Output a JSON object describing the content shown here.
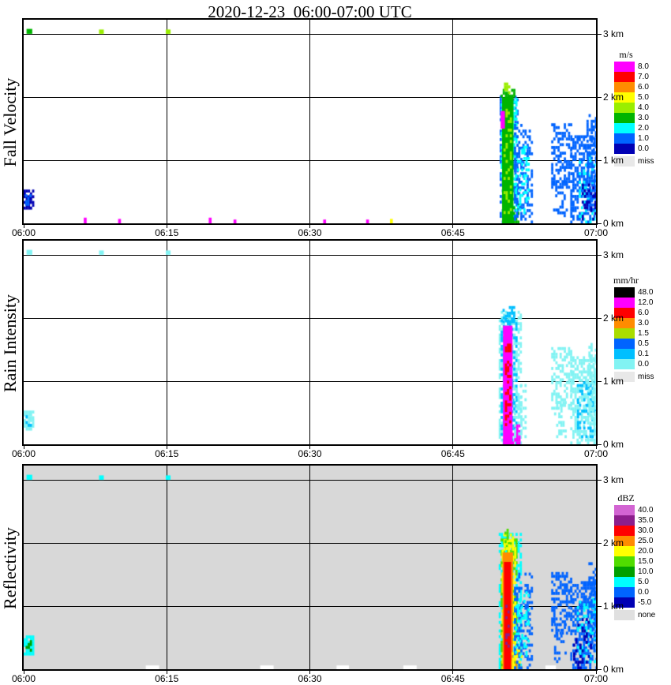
{
  "title": "2020-12-23  06:00-07:00 UTC",
  "chart_data": [
    {
      "type": "heatmap",
      "ylabel": "Fall Velocity",
      "x_tick_labels": [
        "06:00",
        "06:15",
        "06:30",
        "06:45",
        "07:00"
      ],
      "y_tick_labels": [
        "0 km",
        "1 km",
        "2 km",
        "3 km"
      ],
      "x_range_minutes": [
        0,
        60
      ],
      "y_range_km": [
        0,
        3.225
      ],
      "background": "#ffffff",
      "legend": {
        "title": "m/s",
        "entries": [
          {
            "label": "8.0",
            "color": "#ff00ff"
          },
          {
            "label": "7.0",
            "color": "#ff0000"
          },
          {
            "label": "6.0",
            "color": "#ff8c00"
          },
          {
            "label": "5.0",
            "color": "#ffff00"
          },
          {
            "label": "4.0",
            "color": "#9aee00"
          },
          {
            "label": "3.0",
            "color": "#00b400"
          },
          {
            "label": "2.0",
            "color": "#00ffff"
          },
          {
            "label": "1.0",
            "color": "#0064ff"
          },
          {
            "label": "0.0",
            "color": "#0000b4"
          },
          {
            "label": "miss",
            "color": "#e8e8e8",
            "separated": true
          }
        ]
      },
      "cells": [
        [
          0.0,
          0.9,
          0.22,
          0.5,
          "0.0",
          "speckle",
          0.8
        ],
        [
          0.15,
          0.7,
          0.28,
          0.45,
          "1.0",
          "speckle",
          0.5
        ],
        [
          0.3,
          0.9,
          3.0,
          3.08,
          "3.0",
          "fill",
          1
        ],
        [
          7.9,
          8.4,
          3.0,
          3.07,
          "4.0",
          "fill",
          1
        ],
        [
          14.9,
          15.4,
          3.0,
          3.07,
          "4.0",
          "fill",
          1
        ],
        [
          6.3,
          6.6,
          0.0,
          0.09,
          "8.0",
          "fill",
          1
        ],
        [
          9.9,
          10.2,
          0.0,
          0.07,
          "8.0",
          "fill",
          1
        ],
        [
          19.4,
          19.7,
          0.0,
          0.09,
          "8.0",
          "fill",
          1
        ],
        [
          22.0,
          22.3,
          0.0,
          0.06,
          "8.0",
          "fill",
          1
        ],
        [
          31.4,
          31.7,
          0.0,
          0.06,
          "8.0",
          "fill",
          1
        ],
        [
          35.9,
          36.2,
          0.0,
          0.06,
          "8.0",
          "fill",
          1
        ],
        [
          38.4,
          38.7,
          0.0,
          0.07,
          "5.0",
          "fill",
          1
        ],
        [
          49.9,
          51.7,
          0.0,
          2.0,
          "1.0",
          "speckle",
          0.5
        ],
        [
          50.0,
          51.6,
          0.1,
          1.95,
          "2.0",
          "speckle",
          0.35
        ],
        [
          50.15,
          51.35,
          0.0,
          2.0,
          "3.0",
          "fill",
          1
        ],
        [
          50.3,
          51.1,
          0.15,
          1.8,
          "4.0",
          "speckle",
          0.3
        ],
        [
          51.3,
          52.0,
          0.0,
          0.3,
          "3.0",
          "speckle",
          0.5
        ],
        [
          50.0,
          50.45,
          1.5,
          1.78,
          "8.0",
          "fill",
          1
        ],
        [
          50.0,
          51.5,
          1.95,
          2.12,
          "3.0",
          "speckle",
          0.7
        ],
        [
          50.35,
          50.95,
          2.05,
          2.2,
          "4.0",
          "speckle",
          0.5
        ],
        [
          51.4,
          53.3,
          0.0,
          1.55,
          "1.0",
          "speckle",
          0.4
        ],
        [
          51.5,
          52.9,
          0.15,
          1.2,
          "2.0",
          "speckle",
          0.22
        ],
        [
          55.3,
          57.4,
          0.55,
          1.55,
          "1.0",
          "speckle",
          0.45
        ],
        [
          55.5,
          56.9,
          0.1,
          0.7,
          "1.0",
          "speckle",
          0.28
        ],
        [
          57.3,
          60.0,
          0.0,
          1.35,
          "1.0",
          "speckle",
          0.55
        ],
        [
          58.2,
          60.0,
          0.0,
          1.05,
          "2.0",
          "speckle",
          0.25
        ],
        [
          59.0,
          60.0,
          0.2,
          1.72,
          "1.0",
          "speckle",
          0.5
        ],
        [
          58.5,
          60.0,
          0.0,
          0.6,
          "0.0",
          "speckle",
          0.3
        ]
      ]
    },
    {
      "type": "heatmap",
      "ylabel": "Rain Intensity",
      "x_tick_labels": [
        "06:00",
        "06:15",
        "06:30",
        "06:45",
        "07:00"
      ],
      "y_tick_labels": [
        "0 km",
        "1 km",
        "2 km",
        "3 km"
      ],
      "x_range_minutes": [
        0,
        60
      ],
      "y_range_km": [
        0,
        3.225
      ],
      "background": "#ffffff",
      "legend": {
        "title": "mm/hr",
        "entries": [
          {
            "label": "48.0",
            "color": "#000000"
          },
          {
            "label": "12.0",
            "color": "#ff00ff"
          },
          {
            "label": "6.0",
            "color": "#ff0000"
          },
          {
            "label": "3.0",
            "color": "#ff8c00"
          },
          {
            "label": "1.5",
            "color": "#aadd00"
          },
          {
            "label": "0.5",
            "color": "#0064ff"
          },
          {
            "label": "0.1",
            "color": "#00bfff"
          },
          {
            "label": "0.0",
            "color": "#82f3f3"
          },
          {
            "label": "miss",
            "color": "#e8e8e8",
            "separated": true
          }
        ]
      },
      "cells": [
        [
          0.0,
          0.9,
          0.22,
          0.5,
          "0.0",
          "speckle",
          0.85
        ],
        [
          0.2,
          0.7,
          0.28,
          0.45,
          "0.1",
          "speckle",
          0.5
        ],
        [
          0.3,
          0.9,
          3.0,
          3.08,
          "0.0",
          "fill",
          1
        ],
        [
          7.9,
          8.4,
          3.0,
          3.07,
          "0.0",
          "fill",
          1
        ],
        [
          14.9,
          15.4,
          3.0,
          3.07,
          "0.0",
          "fill",
          1
        ],
        [
          49.8,
          52.0,
          0.0,
          2.1,
          "0.0",
          "speckle",
          0.5
        ],
        [
          50.0,
          51.6,
          0.0,
          2.0,
          "0.1",
          "speckle",
          0.4
        ],
        [
          50.25,
          51.25,
          0.0,
          1.88,
          "12.0",
          "fill",
          1
        ],
        [
          50.45,
          51.05,
          0.2,
          1.6,
          "6.0",
          "speckle",
          0.4
        ],
        [
          51.2,
          51.9,
          0.0,
          0.3,
          "12.0",
          "speckle",
          0.45
        ],
        [
          50.2,
          51.4,
          1.92,
          2.15,
          "0.1",
          "speckle",
          0.6
        ],
        [
          51.4,
          52.6,
          0.1,
          1.0,
          "0.0",
          "speckle",
          0.3
        ],
        [
          55.3,
          57.4,
          0.55,
          1.5,
          "0.0",
          "speckle",
          0.45
        ],
        [
          55.6,
          56.9,
          0.1,
          0.7,
          "0.0",
          "speckle",
          0.25
        ],
        [
          57.3,
          60.0,
          0.0,
          1.35,
          "0.0",
          "speckle",
          0.55
        ],
        [
          58.0,
          60.0,
          0.1,
          1.0,
          "0.1",
          "speckle",
          0.3
        ],
        [
          59.2,
          60.0,
          0.3,
          1.6,
          "0.0",
          "speckle",
          0.5
        ]
      ]
    },
    {
      "type": "heatmap",
      "ylabel": "Reflectivity",
      "x_tick_labels": [
        "06:00",
        "06:15",
        "06:30",
        "06:45",
        "07:00"
      ],
      "y_tick_labels": [
        "0 km",
        "1 km",
        "2 km",
        "3 km"
      ],
      "x_range_minutes": [
        0,
        60
      ],
      "y_range_km": [
        0,
        3.225
      ],
      "background": "#d8d8d8",
      "legend": {
        "title": "dBZ",
        "entries": [
          {
            "label": "40.0",
            "color": "#d264d2"
          },
          {
            "label": "35.0",
            "color": "#8c1e8c"
          },
          {
            "label": "30.0",
            "color": "#ff0000"
          },
          {
            "label": "25.0",
            "color": "#ff8c00"
          },
          {
            "label": "20.0",
            "color": "#ffff00"
          },
          {
            "label": "15.0",
            "color": "#50dc00"
          },
          {
            "label": "10.0",
            "color": "#00a000"
          },
          {
            "label": "5.0",
            "color": "#00ffff"
          },
          {
            "label": "0.0",
            "color": "#0064ff"
          },
          {
            "label": "-5.0",
            "color": "#0000b4"
          },
          {
            "label": "none",
            "color": "#e0e0e0",
            "separated": true
          }
        ]
      },
      "cells": [
        [
          0.0,
          0.9,
          0.22,
          0.5,
          "5.0",
          "speckle",
          0.85
        ],
        [
          0.2,
          0.7,
          0.28,
          0.45,
          "10.0",
          "speckle",
          0.5
        ],
        [
          0.3,
          0.9,
          3.0,
          3.08,
          "5.0",
          "fill",
          1
        ],
        [
          7.9,
          8.4,
          3.0,
          3.07,
          "5.0",
          "fill",
          1
        ],
        [
          14.9,
          15.4,
          3.0,
          3.07,
          "5.0",
          "fill",
          1
        ],
        [
          49.8,
          52.0,
          0.0,
          2.12,
          "5.0",
          "speckle",
          0.5
        ],
        [
          50.0,
          51.7,
          0.0,
          2.05,
          "15.0",
          "speckle",
          0.5
        ],
        [
          50.1,
          51.5,
          0.0,
          1.95,
          "20.0",
          "speckle",
          0.6
        ],
        [
          50.2,
          51.3,
          0.0,
          1.85,
          "25.0",
          "fill",
          1
        ],
        [
          50.35,
          51.1,
          0.0,
          1.7,
          "30.0",
          "fill",
          1
        ],
        [
          50.5,
          50.9,
          0.3,
          1.0,
          "35.0",
          "speckle",
          0.25
        ],
        [
          51.1,
          51.9,
          0.0,
          0.25,
          "25.0",
          "speckle",
          0.4
        ],
        [
          51.2,
          52.2,
          0.0,
          0.35,
          "20.0",
          "speckle",
          0.5
        ],
        [
          50.3,
          51.2,
          1.88,
          2.12,
          "20.0",
          "speckle",
          0.6
        ],
        [
          50.4,
          51.0,
          2.0,
          2.18,
          "15.0",
          "speckle",
          0.5
        ],
        [
          51.4,
          53.3,
          0.0,
          1.5,
          "0.0",
          "speckle",
          0.4
        ],
        [
          51.5,
          52.9,
          0.2,
          1.2,
          "5.0",
          "speckle",
          0.25
        ],
        [
          55.3,
          57.4,
          0.55,
          1.5,
          "0.0",
          "speckle",
          0.45
        ],
        [
          55.6,
          56.9,
          0.1,
          0.7,
          "0.0",
          "speckle",
          0.25
        ],
        [
          57.3,
          60.0,
          0.0,
          1.35,
          "0.0",
          "speckle",
          0.55
        ],
        [
          58.0,
          60.0,
          0.1,
          1.1,
          "5.0",
          "speckle",
          0.3
        ],
        [
          59.2,
          60.0,
          0.3,
          1.65,
          "0.0",
          "speckle",
          0.5
        ],
        [
          57.6,
          59.5,
          0.0,
          0.8,
          "-5.0",
          "speckle",
          0.2
        ]
      ],
      "missing_gaps": [
        [
          12.8,
          14.2
        ],
        [
          24.8,
          26.2
        ],
        [
          32.8,
          34.1
        ],
        [
          39.8,
          41.2
        ],
        [
          54.7,
          55.8
        ]
      ]
    }
  ]
}
